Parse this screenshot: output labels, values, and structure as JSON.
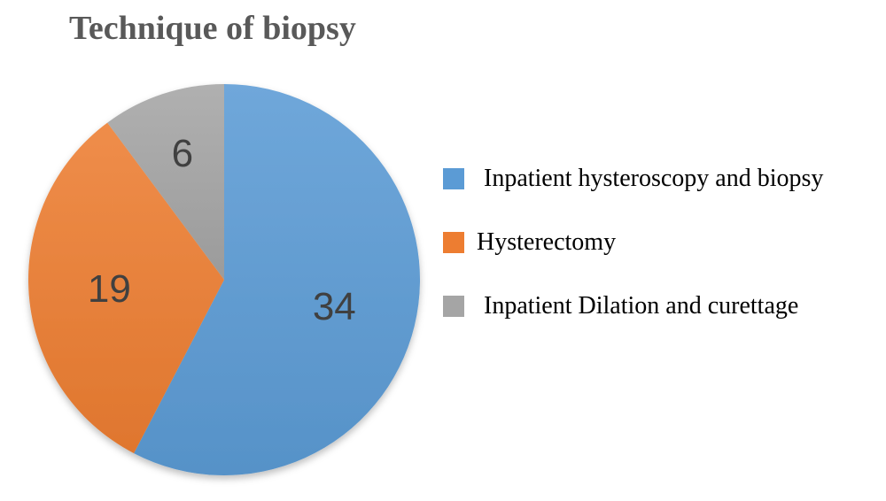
{
  "chart_data": {
    "type": "pie",
    "title": "Technique of biopsy",
    "categories": [
      "Inpatient hysteroscopy and biopsy",
      "Hysterectomy",
      "Inpatient Dilation and curettage"
    ],
    "values": [
      34,
      19,
      6
    ],
    "data_labels": [
      "34",
      "19",
      "6"
    ],
    "colors": [
      "#5b9bd5",
      "#ed7d31",
      "#a5a5a5"
    ],
    "start_angle_deg": 0,
    "direction": "clockwise",
    "legend": {
      "placement": "right",
      "entries": [
        "Inpatient hysteroscopy and biopsy",
        "Hysterectomy",
        "Inpatient Dilation and curettage"
      ]
    }
  }
}
